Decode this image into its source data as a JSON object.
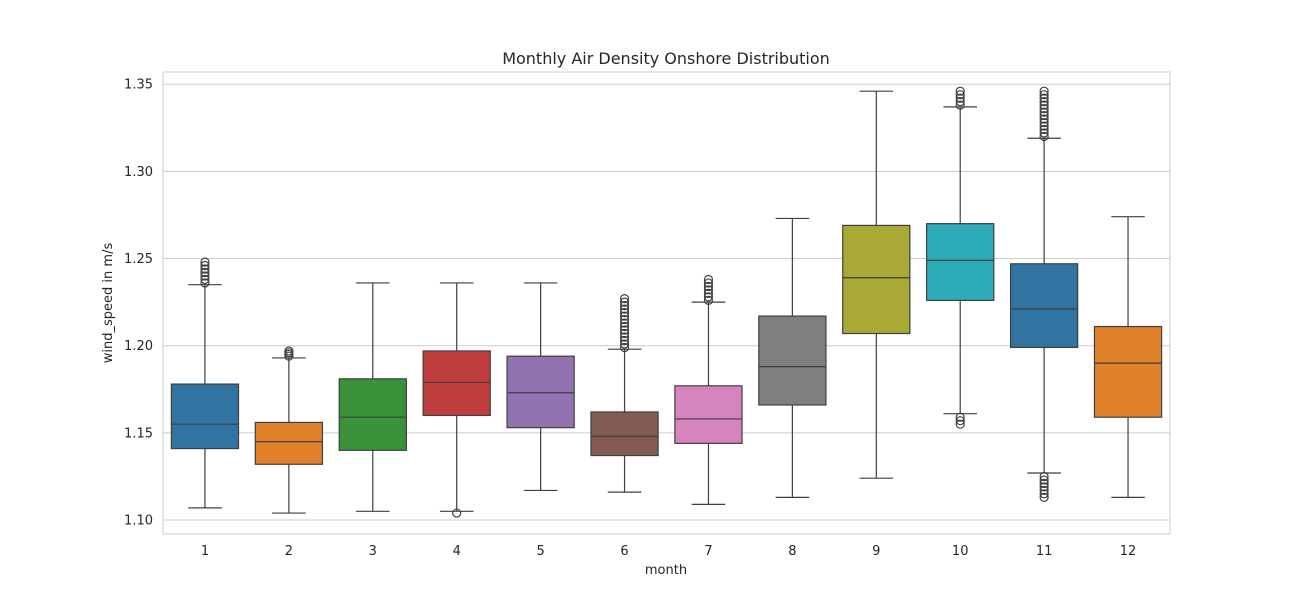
{
  "chart_data": {
    "type": "boxplot",
    "title": "Monthly Air Density Onshore Distribution",
    "xlabel": "month",
    "ylabel": "wind_speed in m/s",
    "ylim": [
      1.092,
      1.357
    ],
    "yticks": [
      "1.10",
      "1.15",
      "1.20",
      "1.25",
      "1.30",
      "1.35"
    ],
    "ytick_values": [
      1.1,
      1.15,
      1.2,
      1.25,
      1.3,
      1.35
    ],
    "grid": true,
    "legend": "none",
    "categories": [
      "1",
      "2",
      "3",
      "4",
      "5",
      "6",
      "7",
      "8",
      "9",
      "10",
      "11",
      "12"
    ],
    "boxes": [
      {
        "category": "1",
        "whisker_low": 1.107,
        "q1": 1.141,
        "median": 1.155,
        "q3": 1.178,
        "whisker_high": 1.235,
        "color": "#3274a1",
        "outliers_high": [
          1.236,
          1.238,
          1.24,
          1.242,
          1.244,
          1.246,
          1.248
        ],
        "outliers_low": []
      },
      {
        "category": "2",
        "whisker_low": 1.104,
        "q1": 1.132,
        "median": 1.145,
        "q3": 1.156,
        "whisker_high": 1.193,
        "color": "#e1812c",
        "outliers_high": [
          1.194,
          1.195,
          1.196,
          1.197
        ],
        "outliers_low": []
      },
      {
        "category": "3",
        "whisker_low": 1.105,
        "q1": 1.14,
        "median": 1.159,
        "q3": 1.181,
        "whisker_high": 1.236,
        "color": "#3a923a",
        "outliers_high": [],
        "outliers_low": []
      },
      {
        "category": "4",
        "whisker_low": 1.105,
        "q1": 1.16,
        "median": 1.179,
        "q3": 1.197,
        "whisker_high": 1.236,
        "color": "#c03d3e",
        "outliers_high": [],
        "outliers_low": [
          1.104
        ]
      },
      {
        "category": "5",
        "whisker_low": 1.117,
        "q1": 1.153,
        "median": 1.173,
        "q3": 1.194,
        "whisker_high": 1.236,
        "color": "#9372b2",
        "outliers_high": [],
        "outliers_low": []
      },
      {
        "category": "6",
        "whisker_low": 1.116,
        "q1": 1.137,
        "median": 1.148,
        "q3": 1.162,
        "whisker_high": 1.198,
        "color": "#845b53",
        "outliers_high": [
          1.199,
          1.201,
          1.203,
          1.205,
          1.207,
          1.209,
          1.211,
          1.213,
          1.215,
          1.217,
          1.219,
          1.221,
          1.223,
          1.225,
          1.227
        ],
        "outliers_low": []
      },
      {
        "category": "7",
        "whisker_low": 1.109,
        "q1": 1.144,
        "median": 1.158,
        "q3": 1.177,
        "whisker_high": 1.225,
        "color": "#d684bd",
        "outliers_high": [
          1.226,
          1.228,
          1.23,
          1.232,
          1.234,
          1.236,
          1.238
        ],
        "outliers_low": []
      },
      {
        "category": "8",
        "whisker_low": 1.113,
        "q1": 1.166,
        "median": 1.188,
        "q3": 1.217,
        "whisker_high": 1.273,
        "color": "#7f7f7f",
        "outliers_high": [],
        "outliers_low": []
      },
      {
        "category": "9",
        "whisker_low": 1.124,
        "q1": 1.207,
        "median": 1.239,
        "q3": 1.269,
        "whisker_high": 1.346,
        "color": "#a9aa35",
        "outliers_high": [],
        "outliers_low": []
      },
      {
        "category": "10",
        "whisker_low": 1.161,
        "q1": 1.226,
        "median": 1.249,
        "q3": 1.27,
        "whisker_high": 1.337,
        "color": "#2eabb8",
        "outliers_high": [
          1.338,
          1.34,
          1.342,
          1.344,
          1.346
        ],
        "outliers_low": [
          1.155,
          1.157,
          1.159
        ]
      },
      {
        "category": "11",
        "whisker_low": 1.127,
        "q1": 1.199,
        "median": 1.221,
        "q3": 1.247,
        "whisker_high": 1.319,
        "color": "#3274a1",
        "outliers_high": [
          1.32,
          1.322,
          1.324,
          1.326,
          1.328,
          1.33,
          1.332,
          1.334,
          1.336,
          1.338,
          1.34,
          1.342,
          1.344,
          1.346
        ],
        "outliers_low": [
          1.113,
          1.115,
          1.117,
          1.119,
          1.121,
          1.123,
          1.125
        ]
      },
      {
        "category": "12",
        "whisker_low": 1.113,
        "q1": 1.159,
        "median": 1.19,
        "q3": 1.211,
        "whisker_high": 1.274,
        "color": "#e1812c",
        "outliers_high": [],
        "outliers_low": []
      }
    ]
  }
}
